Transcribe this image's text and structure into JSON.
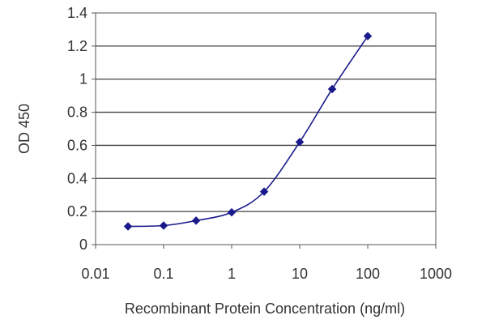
{
  "chart_data": {
    "type": "line",
    "title": "",
    "xlabel": "Recombinant Protein Concentration (ng/ml)",
    "ylabel": "OD 450",
    "x_scale": "log",
    "xlim": [
      0.01,
      1000
    ],
    "ylim": [
      0,
      1.4
    ],
    "x_ticks": [
      "0.01",
      "0.1",
      "1",
      "10",
      "100",
      "1000"
    ],
    "y_ticks": [
      "0",
      "0.2",
      "0.4",
      "0.6",
      "0.8",
      "1",
      "1.2",
      "1.4"
    ],
    "grid": "horizontal",
    "series": [
      {
        "color": "#1a1a8c",
        "marker": "diamond",
        "points": [
          {
            "x": 0.03,
            "y": 0.11
          },
          {
            "x": 0.1,
            "y": 0.115
          },
          {
            "x": 0.3,
            "y": 0.145
          },
          {
            "x": 1,
            "y": 0.195
          },
          {
            "x": 3,
            "y": 0.32
          },
          {
            "x": 10,
            "y": 0.62
          },
          {
            "x": 30,
            "y": 0.94
          },
          {
            "x": 100,
            "y": 1.26
          }
        ]
      }
    ]
  }
}
